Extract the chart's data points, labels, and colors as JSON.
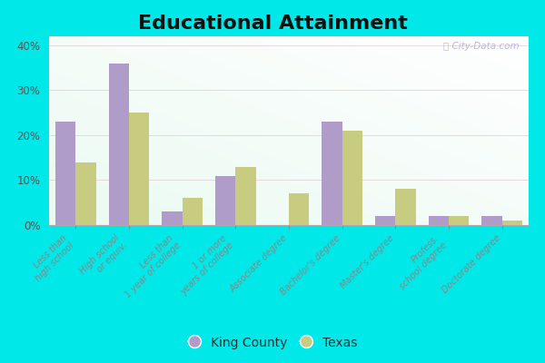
{
  "title": "Educational Attainment",
  "categories": [
    "Less than\nhigh school",
    "High school\nor equiv.",
    "Less than\n1 year of college",
    "1 or more\nyears of college",
    "Associate degree",
    "Bachelor's degree",
    "Master's degree",
    "Profess.\nschool degree",
    "Doctorate degree"
  ],
  "king_county": [
    23,
    36,
    3,
    11,
    0,
    23,
    2,
    2,
    2
  ],
  "texas": [
    14,
    25,
    6,
    13,
    7,
    21,
    8,
    2,
    1
  ],
  "king_color": "#b09cc8",
  "texas_color": "#c8cc80",
  "ylim": [
    0,
    42
  ],
  "yticks": [
    0,
    10,
    20,
    30,
    40
  ],
  "ytick_labels": [
    "0%",
    "10%",
    "20%",
    "30%",
    "40%"
  ],
  "outer_background": "#00e8e8",
  "legend_labels": [
    "King County",
    "Texas"
  ],
  "watermark": "City-Data.com",
  "title_fontsize": 16,
  "bar_width": 0.38
}
